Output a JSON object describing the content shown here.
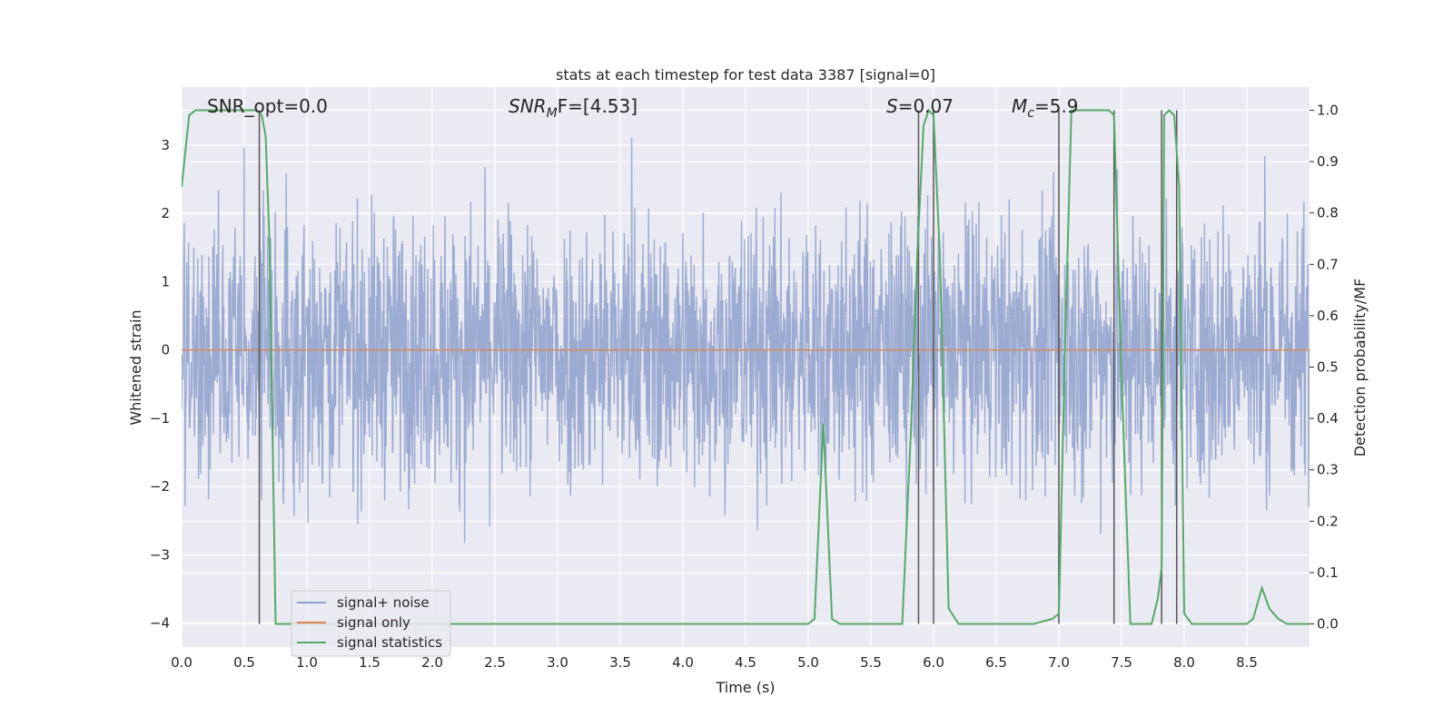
{
  "chart_data": {
    "type": "line",
    "title": "stats at each timestep for test data 3387 [signal=0]",
    "xlabel": "Time (s)",
    "ylabel": "Whitened strain",
    "y2label": "Detection probability/MF",
    "xlim": [
      0,
      9.0
    ],
    "ylim": [
      -4.35,
      3.85
    ],
    "y2lim": [
      -0.045,
      1.045
    ],
    "x_ticks": [
      "0.0",
      "0.5",
      "1.0",
      "1.5",
      "2.0",
      "2.5",
      "3.0",
      "3.5",
      "4.0",
      "4.5",
      "5.0",
      "5.5",
      "6.0",
      "6.5",
      "7.0",
      "7.5",
      "8.0",
      "8.5"
    ],
    "y_ticks": [
      "−4",
      "−3",
      "−2",
      "−1",
      "0",
      "1",
      "2",
      "3"
    ],
    "y2_ticks": [
      "0.0",
      "0.1",
      "0.2",
      "0.3",
      "0.4",
      "0.5",
      "0.6",
      "0.7",
      "0.8",
      "0.9",
      "1.0"
    ],
    "grid": true,
    "legend_position": "lower-left",
    "legend": [
      "signal+ noise",
      "signal only",
      "signal statistics"
    ],
    "colors": {
      "noise": "#8da0cb",
      "signal": "#dd8452",
      "stats": "#55a868",
      "vline": "#555555",
      "background": "#eaeaf2",
      "grid": "#ffffff"
    },
    "annotations": {
      "snr_opt": "SNR_opt=0.0",
      "snr_mf_name": "SNR",
      "snr_mf_sub": "M",
      "snr_mf_rest": "F=[4.53]",
      "s_name": "S",
      "s_rest": "=0.07",
      "mc_name": "M",
      "mc_sub": "c",
      "mc_rest": "=5.9"
    },
    "series": [
      {
        "name": "signal+ noise",
        "note_values": "whitened strain noise, approx. gaussian, envelope roughly ±1.6 with spikes to ±3.5",
        "amplitude_bounds": [
          -4.0,
          3.5
        ]
      },
      {
        "name": "signal only",
        "x": [
          0,
          9.0
        ],
        "y": [
          0,
          0
        ]
      },
      {
        "name": "signal statistics",
        "axis": "right",
        "x": [
          0.0,
          0.06,
          0.11,
          0.2,
          0.3,
          0.4,
          0.5,
          0.6,
          0.64,
          0.67,
          0.7,
          0.75,
          0.8,
          1.0,
          2.0,
          3.0,
          4.0,
          4.5,
          4.9,
          5.0,
          5.05,
          5.12,
          5.19,
          5.25,
          5.3,
          5.5,
          5.75,
          5.82,
          5.87,
          5.92,
          5.96,
          6.0,
          6.05,
          6.12,
          6.2,
          6.3,
          6.5,
          6.8,
          6.95,
          7.0,
          7.05,
          7.1,
          7.2,
          7.3,
          7.4,
          7.44,
          7.5,
          7.57,
          7.65,
          7.74,
          7.79,
          7.82,
          7.84,
          7.88,
          7.92,
          7.96,
          8.0,
          8.06,
          8.1,
          8.2,
          8.3,
          8.4,
          8.5,
          8.55,
          8.62,
          8.68,
          8.75,
          8.82,
          8.9,
          9.0
        ],
        "y": [
          0.85,
          0.99,
          1.0,
          1.0,
          1.0,
          1.0,
          1.0,
          1.0,
          0.99,
          0.95,
          0.75,
          0.0,
          0.0,
          0.0,
          0.0,
          0.0,
          0.0,
          0.0,
          0.0,
          0.0,
          0.01,
          0.39,
          0.01,
          0.0,
          0.0,
          0.0,
          0.0,
          0.38,
          0.72,
          0.97,
          1.0,
          0.99,
          0.72,
          0.03,
          0.0,
          0.0,
          0.0,
          0.0,
          0.01,
          0.02,
          0.55,
          1.0,
          1.0,
          1.0,
          1.0,
          0.99,
          0.48,
          0.0,
          0.0,
          0.0,
          0.05,
          0.11,
          0.99,
          1.0,
          0.99,
          0.85,
          0.02,
          0.0,
          0.0,
          0.0,
          0.0,
          0.0,
          0.0,
          0.01,
          0.07,
          0.03,
          0.01,
          0.0,
          0.0,
          0.0
        ]
      }
    ],
    "vertical_lines_x": [
      0.62,
      5.88,
      6.0,
      7.0,
      7.44,
      7.82,
      7.94
    ]
  }
}
